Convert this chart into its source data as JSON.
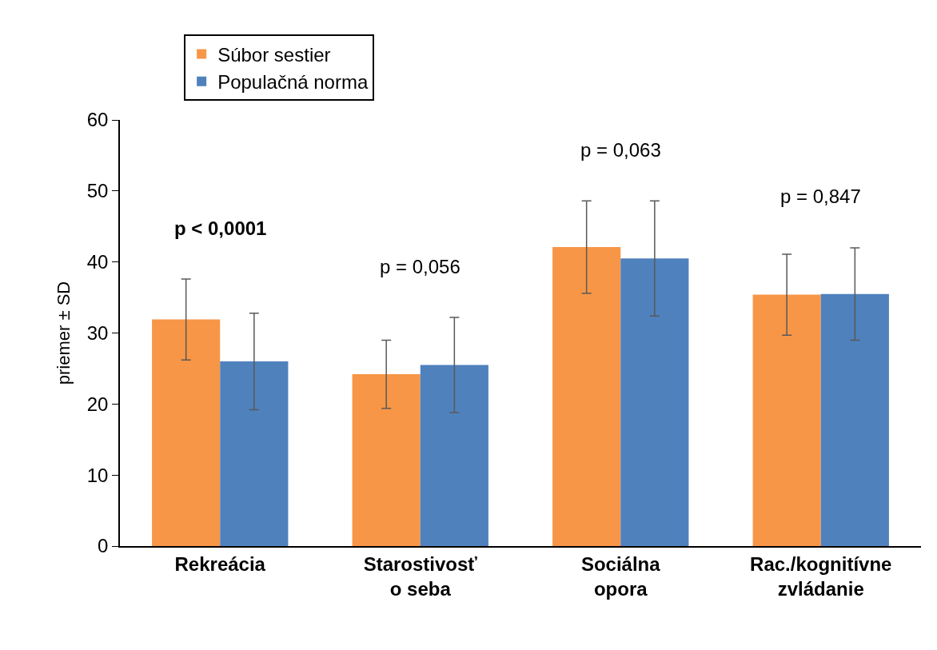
{
  "chart_data": {
    "type": "bar",
    "ylabel": "priemer ± SD",
    "categories": [
      "Rekreácia",
      "Starostivosť\no seba",
      "Sociálna\nopora",
      "Rac./kognitívne\nzvládanie"
    ],
    "series": [
      {
        "name": "Súbor sestier",
        "color": "#f79646",
        "values": [
          31.9,
          24.2,
          42.1,
          35.4
        ],
        "errors": [
          5.7,
          4.8,
          6.5,
          5.7
        ]
      },
      {
        "name": "Populačná norma",
        "color": "#4f81bd",
        "values": [
          26.0,
          25.5,
          40.5,
          35.5
        ],
        "errors": [
          6.8,
          6.7,
          8.1,
          6.5
        ]
      }
    ],
    "ylim": [
      0,
      60
    ],
    "yticks": [
      0,
      10,
      20,
      30,
      40,
      50,
      60
    ],
    "legend": "top left",
    "annotations": [
      "p < 0,0001",
      "p = 0,056",
      "p = 0,063",
      "p = 0,847"
    ]
  }
}
